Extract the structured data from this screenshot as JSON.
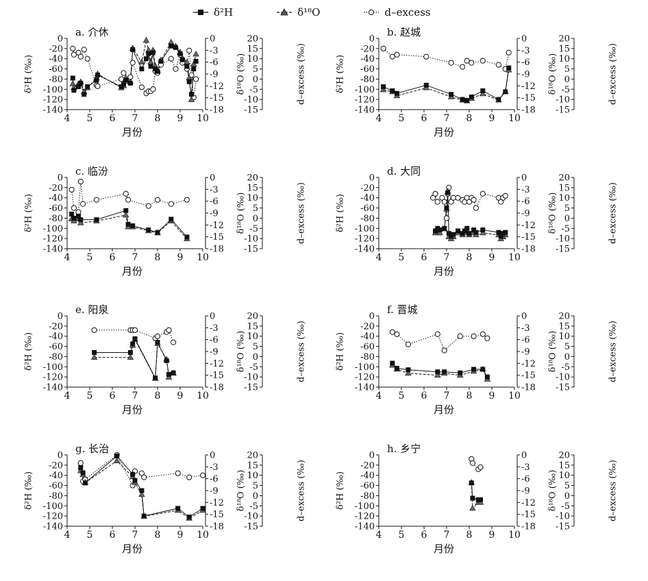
{
  "legend": [
    {
      "label": "δ²H",
      "marker": "square",
      "line": "solid"
    },
    {
      "label": "δ¹⁸O",
      "marker": "triangle",
      "line": "dashed"
    },
    {
      "label": "d–excess",
      "marker": "circle-open",
      "line": "dotted"
    }
  ],
  "axes": {
    "left_label": "δ²H (‰)",
    "right1_label": "δ¹⁸O (‰)",
    "right2_label": "d–excess (‰)",
    "xlabel": "月份",
    "x_ticks": [
      4,
      5,
      6,
      7,
      8,
      9,
      10
    ],
    "left_ticks": [
      0,
      -20,
      -40,
      -60,
      -80,
      -100,
      -120,
      -140
    ],
    "right1_ticks": [
      0,
      -3,
      -6,
      -9,
      -12,
      -15,
      -18
    ],
    "right2_ticks": [
      20,
      15,
      10,
      5,
      0,
      -5,
      -10,
      -15
    ],
    "xlim": [
      4,
      10
    ],
    "left_ylim": [
      -140,
      0
    ],
    "right1_ylim": [
      -18,
      0
    ],
    "right2_ylim": [
      -15,
      20
    ]
  },
  "chart_data": [
    {
      "type": "line",
      "title": "a. 介休",
      "series": [
        {
          "name": "δ²H",
          "x": [
            4.25,
            4.3,
            4.5,
            4.6,
            4.75,
            4.9,
            5.3,
            5.35,
            6.4,
            6.5,
            6.6,
            6.8,
            6.9,
            7.3,
            7.5,
            7.6,
            7.7,
            7.8,
            7.9,
            8.0,
            8.15,
            8.6,
            8.8,
            9.0,
            9.1,
            9.3,
            9.4,
            9.5,
            9.6,
            9.7
          ],
          "y": [
            -78,
            -102,
            -95,
            -88,
            -110,
            -95,
            -82,
            -72,
            -95,
            -90,
            -82,
            -88,
            -22,
            -60,
            -40,
            -30,
            -55,
            -28,
            -60,
            -65,
            -45,
            -15,
            -18,
            -30,
            -42,
            -55,
            -85,
            -110,
            -60,
            -45
          ]
        },
        {
          "name": "δ¹⁸O",
          "x": [
            4.25,
            4.3,
            4.5,
            4.6,
            4.75,
            4.9,
            5.3,
            5.35,
            6.4,
            6.5,
            6.6,
            6.8,
            6.9,
            7.3,
            7.5,
            7.6,
            7.7,
            7.8,
            7.9,
            8.0,
            8.15,
            8.6,
            8.8,
            9.0,
            9.1,
            9.3,
            9.4,
            9.5,
            9.6,
            9.7
          ],
          "y": [
            -11.5,
            -12.5,
            -11.5,
            -11,
            -13.5,
            -12.5,
            -10,
            -9,
            -12.5,
            -12,
            -10,
            -11,
            -2.5,
            -6,
            -0.5,
            -3,
            -6,
            -3,
            -7,
            -8,
            -5.5,
            -1,
            -2,
            -3.5,
            -5,
            -6,
            -10,
            -15.5,
            -6.5,
            -4
          ]
        },
        {
          "name": "d–excess",
          "x": [
            4.25,
            4.3,
            4.5,
            4.6,
            4.75,
            4.9,
            5.3,
            5.35,
            6.4,
            6.5,
            6.6,
            6.8,
            6.9,
            7.3,
            7.5,
            7.6,
            7.7,
            7.8,
            7.9,
            8.0,
            8.15,
            8.6,
            8.8,
            9.0,
            9.1,
            9.3,
            9.4,
            9.5,
            9.6,
            9.7
          ],
          "y": [
            15,
            12,
            13,
            11,
            14.5,
            10,
            -3,
            -3.5,
            0,
            3,
            -1,
            1,
            8,
            -4,
            -7,
            -6,
            -6,
            -5,
            4,
            3,
            7,
            10,
            5,
            12,
            8,
            5,
            14,
            2,
            -9,
            0
          ]
        }
      ]
    },
    {
      "type": "line",
      "title": "b. 赵城",
      "series": [
        {
          "name": "δ²H",
          "x": [
            4.2,
            4.6,
            4.8,
            6.1,
            7.2,
            7.7,
            7.9,
            8.1,
            8.6,
            9.3,
            9.6,
            9.75
          ],
          "y": [
            -95,
            -103,
            -108,
            -92,
            -110,
            -120,
            -122,
            -115,
            -103,
            -120,
            -105,
            -58
          ]
        },
        {
          "name": "δ¹⁸O",
          "x": [
            4.2,
            4.6,
            4.8,
            6.1,
            7.2,
            7.7,
            7.9,
            8.1,
            8.6,
            9.3,
            9.6,
            9.75
          ],
          "y": [
            -13,
            -13.5,
            -14.5,
            -12.5,
            -14.8,
            -15.6,
            -15.8,
            -15.2,
            -14,
            -15.6,
            -13.5,
            -8
          ]
        },
        {
          "name": "d–excess",
          "x": [
            4.2,
            4.6,
            4.8,
            6.1,
            7.2,
            7.7,
            7.9,
            8.1,
            8.6,
            9.3,
            9.6,
            9.75
          ],
          "y": [
            15,
            11,
            12,
            11,
            8,
            6,
            9,
            8,
            9,
            7,
            5,
            13
          ]
        }
      ]
    },
    {
      "type": "line",
      "title": "c. 临汾",
      "series": [
        {
          "name": "δ²H",
          "x": [
            4.2,
            4.3,
            4.5,
            4.6,
            5.3,
            6.6,
            6.7,
            6.9,
            7.6,
            8.0,
            8.6,
            9.3
          ],
          "y": [
            -72,
            -80,
            -76,
            -83,
            -83,
            -65,
            -92,
            -95,
            -103,
            -108,
            -82,
            -117
          ]
        },
        {
          "name": "δ¹⁸O",
          "x": [
            4.2,
            4.3,
            4.5,
            4.6,
            5.3,
            6.6,
            6.7,
            6.9,
            7.6,
            8.0,
            8.6,
            9.3
          ],
          "y": [
            -10.5,
            -11,
            -10.5,
            -11.5,
            -11,
            -9.5,
            -12.5,
            -12.5,
            -13.5,
            -14,
            -11,
            -15.5
          ]
        },
        {
          "name": "d–excess",
          "x": [
            4.2,
            4.3,
            4.5,
            4.6,
            4.7,
            5.3,
            6.6,
            6.7,
            7.6,
            8.0,
            8.6,
            9.3
          ],
          "y": [
            14,
            5,
            3,
            18,
            7,
            9,
            12,
            9,
            6,
            9,
            7,
            9
          ]
        }
      ]
    },
    {
      "type": "line",
      "title": "d. 大同",
      "series": [
        {
          "name": "δ²H",
          "x": [
            6.5,
            6.6,
            6.7,
            6.9,
            7.0,
            7.05,
            7.1,
            7.2,
            7.3,
            7.5,
            7.7,
            7.8,
            7.9,
            8.0,
            8.2,
            8.3,
            8.6,
            9.3,
            9.4,
            9.5,
            9.6
          ],
          "y": [
            -105,
            -100,
            -103,
            -100,
            -60,
            -30,
            -110,
            -115,
            -112,
            -105,
            -110,
            -105,
            -100,
            -110,
            -103,
            -108,
            -103,
            -108,
            -115,
            -110,
            -108
          ]
        },
        {
          "name": "δ¹⁸O",
          "x": [
            6.5,
            6.6,
            6.7,
            6.9,
            7.0,
            7.05,
            7.1,
            7.2,
            7.3,
            7.5,
            7.7,
            7.8,
            7.9,
            8.0,
            8.2,
            8.3,
            8.6,
            9.3,
            9.4,
            9.5,
            9.6
          ],
          "y": [
            -14,
            -13.5,
            -14,
            -13,
            -8,
            -3.5,
            -15,
            -15.5,
            -15,
            -14,
            -14.5,
            -14,
            -13.5,
            -14.5,
            -14,
            -14.5,
            -14,
            -14.5,
            -15.5,
            -15,
            -14.5
          ]
        },
        {
          "name": "d–excess",
          "x": [
            6.4,
            6.5,
            6.6,
            6.8,
            6.9,
            7.0,
            7.05,
            7.1,
            7.2,
            7.3,
            7.5,
            7.7,
            7.8,
            7.9,
            8.0,
            8.1,
            8.2,
            8.3,
            8.6,
            9.3,
            9.4,
            9.5,
            9.6
          ],
          "y": [
            10,
            12,
            8,
            10,
            8,
            0,
            12,
            15,
            8,
            10,
            10,
            9,
            8,
            10,
            8,
            10,
            9,
            5,
            12,
            10,
            8,
            10,
            11
          ]
        }
      ]
    },
    {
      "type": "line",
      "title": "e. 阳泉",
      "series": [
        {
          "name": "δ²H",
          "x": [
            5.2,
            6.8,
            6.9,
            7.0,
            7.9,
            8.0,
            8.4,
            8.5,
            8.7
          ],
          "y": [
            -72,
            -72,
            -55,
            -45,
            -122,
            -52,
            -88,
            -115,
            -112
          ]
        },
        {
          "name": "δ¹⁸O",
          "x": [
            5.2,
            6.8,
            6.9,
            7.0,
            7.9,
            8.0,
            8.4,
            8.5,
            8.7
          ],
          "y": [
            -10.5,
            -10.5,
            -7.5,
            -6,
            -15.8,
            -7,
            -11,
            -15.5,
            -14.5
          ]
        },
        {
          "name": "d–excess",
          "x": [
            5.2,
            6.8,
            6.9,
            7.0,
            7.9,
            8.0,
            8.4,
            8.5,
            8.7
          ],
          "y": [
            13,
            13,
            13,
            13,
            9,
            10,
            12,
            13,
            7
          ]
        }
      ]
    },
    {
      "type": "line",
      "title": "f. 晋城",
      "series": [
        {
          "name": "δ²H",
          "x": [
            4.6,
            4.8,
            5.3,
            6.6,
            6.9,
            7.6,
            8.2,
            8.6,
            8.8
          ],
          "y": [
            -93,
            -103,
            -106,
            -110,
            -110,
            -112,
            -105,
            -105,
            -120
          ]
        },
        {
          "name": "δ¹⁸O",
          "x": [
            4.6,
            4.8,
            5.3,
            6.6,
            6.9,
            7.6,
            8.2,
            8.6,
            8.8
          ],
          "y": [
            -12.5,
            -13.5,
            -14.5,
            -15,
            -14.5,
            -15,
            -14,
            -13.5,
            -16
          ]
        },
        {
          "name": "d–excess",
          "x": [
            4.6,
            4.8,
            5.3,
            6.6,
            6.9,
            7.6,
            8.2,
            8.6,
            8.8
          ],
          "y": [
            12,
            11,
            6,
            11,
            3,
            10,
            10,
            11,
            9
          ]
        }
      ]
    },
    {
      "type": "line",
      "title": "g. 长治",
      "series": [
        {
          "name": "δ²H",
          "x": [
            4.6,
            4.7,
            4.8,
            6.2,
            6.9,
            7.0,
            7.3,
            7.4,
            8.9,
            9.4,
            10.0
          ],
          "y": [
            -25,
            -35,
            -55,
            -2,
            -38,
            -50,
            -70,
            -120,
            -105,
            -122,
            -105
          ]
        },
        {
          "name": "δ¹⁸O",
          "x": [
            4.6,
            4.7,
            4.8,
            6.2,
            6.9,
            7.0,
            7.3,
            7.4,
            8.9,
            9.4,
            10.0
          ],
          "y": [
            -4,
            -5,
            -7,
            -1.5,
            -5.5,
            -7,
            -10,
            -15.5,
            -14,
            -16,
            -14
          ]
        },
        {
          "name": "d–excess",
          "x": [
            4.6,
            4.7,
            4.8,
            6.2,
            6.9,
            7.0,
            7.3,
            7.4,
            8.9,
            9.4,
            10.0
          ],
          "y": [
            16,
            7,
            8,
            20,
            5,
            12,
            11,
            9,
            11,
            9,
            10
          ]
        }
      ]
    },
    {
      "type": "line",
      "title": "h. 乡宁",
      "series": [
        {
          "name": "δ²H",
          "x": [
            8.1,
            8.15,
            8.4,
            8.5
          ],
          "y": [
            -55,
            -85,
            -88,
            -88
          ]
        },
        {
          "name": "δ¹⁸O",
          "x": [
            8.1,
            8.15,
            8.4,
            8.5
          ],
          "y": [
            -7,
            -13.5,
            -12,
            -12
          ]
        },
        {
          "name": "d–excess",
          "x": [
            8.1,
            8.15,
            8.4,
            8.5
          ],
          "y": [
            18,
            16,
            13,
            14
          ]
        }
      ]
    }
  ]
}
